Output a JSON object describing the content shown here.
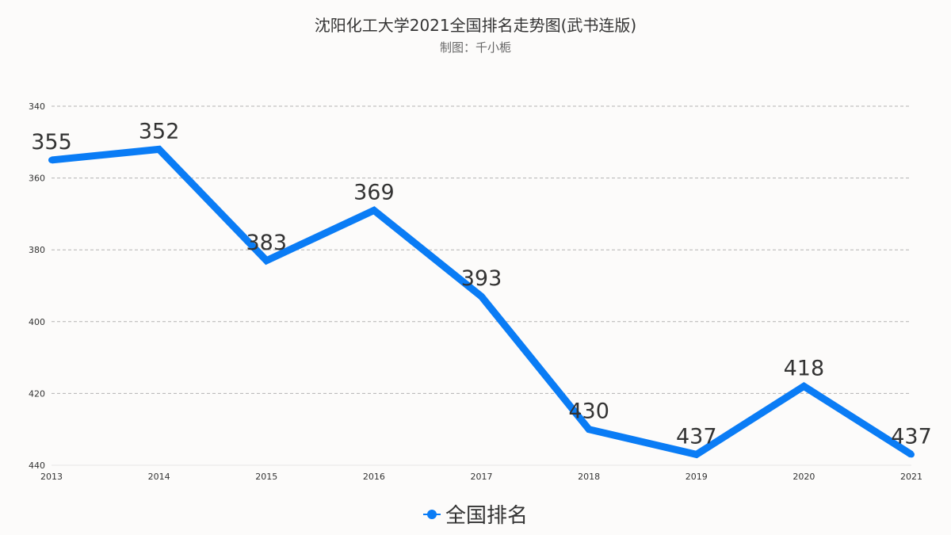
{
  "header": {
    "title": "沈阳化工大学2021全国排名走势图(武书连版)",
    "subtitle": "制图：千小栀"
  },
  "legend": {
    "label": "全国排名",
    "color": "#0a7cf5"
  },
  "chart_data": {
    "type": "line",
    "title": "沈阳化工大学2021全国排名走势图(武书连版)",
    "subtitle": "制图：千小栀",
    "categories": [
      "2013",
      "2014",
      "2015",
      "2016",
      "2017",
      "2018",
      "2019",
      "2020",
      "2021"
    ],
    "series": [
      {
        "name": "全国排名",
        "values": [
          355,
          352,
          383,
          369,
          393,
          430,
          437,
          418,
          437
        ],
        "color": "#0a7cf5"
      }
    ],
    "ylim": [
      340,
      440
    ],
    "y_inverted": true,
    "yticks": [
      "340",
      "360",
      "380",
      "400",
      "420",
      "440"
    ],
    "grid": true,
    "legend_position": "bottom-center",
    "data_labels": true
  }
}
